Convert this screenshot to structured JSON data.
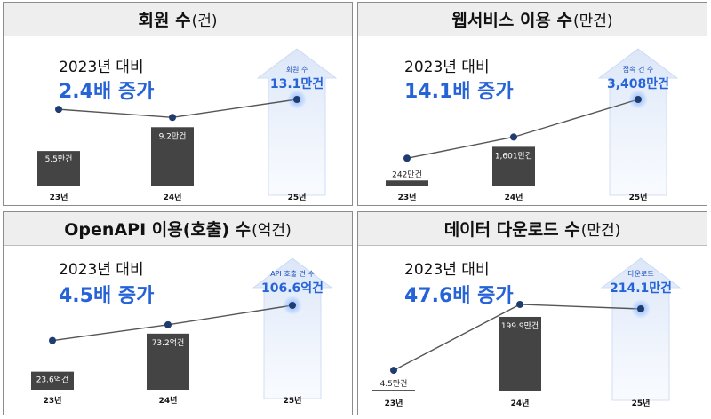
{
  "colors": {
    "accent": "#2563d6",
    "bar": "#444444",
    "line": "#555555",
    "point": "#1f3b70",
    "header_bg": "#eeeeee"
  },
  "chart_data": [
    {
      "type": "bar",
      "title": "회원 수",
      "unit_suffix": "(건)",
      "comparison": "2023년 대비",
      "multiplier": "2.4배 증가",
      "categories": [
        "23년",
        "24년",
        "25년"
      ],
      "values": [
        5.5,
        9.2,
        13.1
      ],
      "value_labels": [
        "5.5만건",
        "9.2만건",
        "13.1만건"
      ],
      "forecast_caption": "회원 수",
      "series": [
        {
          "values": [
            5.5,
            9.2,
            13.1
          ]
        }
      ]
    },
    {
      "type": "bar",
      "title": "웹서비스 이용 수",
      "unit_suffix": "(만건)",
      "comparison": "2023년 대비",
      "multiplier": "14.1배 증가",
      "categories": [
        "23년",
        "24년",
        "25년"
      ],
      "values": [
        242,
        1601,
        3408
      ],
      "value_labels": [
        "242만건",
        "1,601만건",
        "3,408만건"
      ],
      "forecast_caption": "접속 건 수",
      "series": [
        {
          "values": [
            242,
            1601,
            3408
          ]
        }
      ]
    },
    {
      "type": "bar",
      "title": "OpenAPI 이용(호출) 수",
      "unit_suffix": "(억건)",
      "comparison": "2023년 대비",
      "multiplier": "4.5배 증가",
      "categories": [
        "23년",
        "24년",
        "25년"
      ],
      "values": [
        23.6,
        73.2,
        106.6
      ],
      "value_labels": [
        "23.6억건",
        "73.2억건",
        "106.6억건"
      ],
      "forecast_caption": "API 호출 건 수",
      "series": [
        {
          "values": [
            23.6,
            73.2,
            106.6
          ]
        }
      ]
    },
    {
      "type": "bar",
      "title": "데이터 다운로드 수",
      "unit_suffix": "(만건)",
      "comparison": "2023년 대비",
      "multiplier": "47.6배 증가",
      "categories": [
        "23년",
        "24년",
        "25년"
      ],
      "values": [
        4.5,
        199.9,
        214.1
      ],
      "value_labels": [
        "4.5만건",
        "199.9만건",
        "214.1만건"
      ],
      "forecast_caption": "다운로드",
      "series": [
        {
          "values": [
            4.5,
            199.9,
            214.1
          ]
        }
      ]
    }
  ]
}
